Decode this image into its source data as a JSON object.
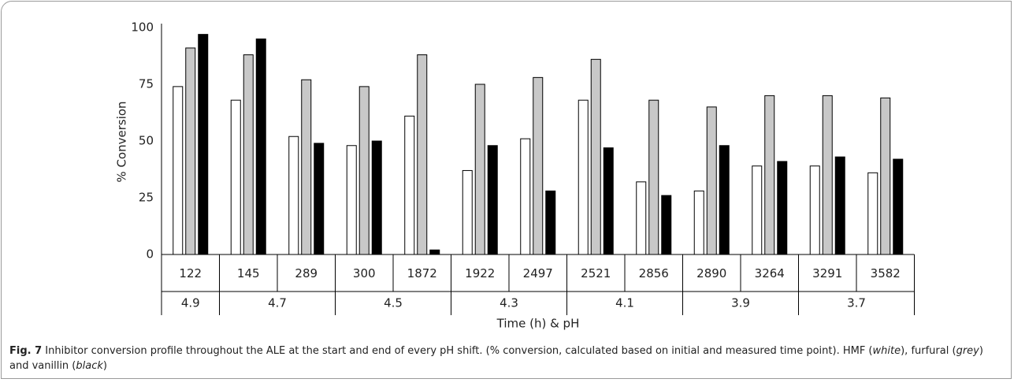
{
  "chart_data": {
    "type": "bar",
    "ylabel": "% Conversion",
    "xlabel": "Time (h) & pH",
    "categories": [
      "122",
      "145",
      "289",
      "300",
      "1872",
      "1922",
      "2497",
      "2521",
      "2856",
      "2890",
      "3264",
      "3291",
      "3582"
    ],
    "x_groups": [
      {
        "label": "4.9",
        "count": 1
      },
      {
        "label": "4.7",
        "count": 2
      },
      {
        "label": "4.5",
        "count": 2
      },
      {
        "label": "4.3",
        "count": 2
      },
      {
        "label": "4.1",
        "count": 2
      },
      {
        "label": "3.9",
        "count": 2
      },
      {
        "label": "3.7",
        "count": 2
      }
    ],
    "series": [
      {
        "color": "#ffffff",
        "values": [
          74,
          68,
          52,
          48,
          61,
          37,
          51,
          68,
          32,
          28,
          39,
          39,
          36
        ]
      },
      {
        "color": "#c8c8c8",
        "values": [
          91,
          88,
          77,
          74,
          88,
          75,
          78,
          86,
          68,
          65,
          70,
          70,
          69
        ]
      },
      {
        "color": "#000000",
        "values": [
          97,
          95,
          49,
          50,
          2,
          48,
          28,
          47,
          26,
          48,
          41,
          43,
          42
        ]
      }
    ],
    "ylim": [
      0,
      100
    ],
    "yticks": [
      0,
      25,
      50,
      75,
      100
    ],
    "grid": false
  },
  "caption": {
    "label": "Fig. 7",
    "parts": [
      {
        "text": " Inhibitor conversion profile throughout the ALE at the start and end of every pH shift. (% conversion, calculated based on initial and measured time point). HMF ("
      },
      {
        "text": "white",
        "italic": true
      },
      {
        "text": "), furfural ("
      },
      {
        "text": "grey",
        "italic": true
      },
      {
        "text": ") and vanillin ("
      },
      {
        "text": "black",
        "italic": true
      },
      {
        "text": ")"
      }
    ]
  }
}
